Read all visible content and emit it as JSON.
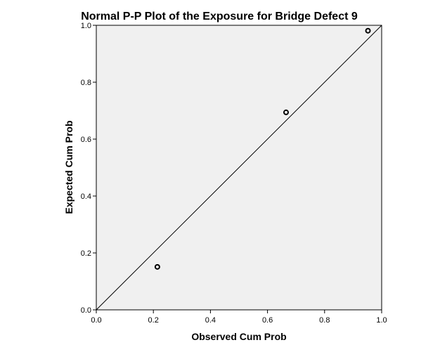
{
  "chart_data": {
    "type": "scatter",
    "title": "Normal P-P Plot of the Exposure for Bridge Defect 9",
    "xlabel": "Observed Cum Prob",
    "ylabel": "Expected Cum Prob",
    "xlim": [
      0,
      1
    ],
    "ylim": [
      0,
      1
    ],
    "x_ticks": [
      "0.0",
      "0.2",
      "0.4",
      "0.6",
      "0.8",
      "1.0"
    ],
    "y_ticks": [
      "0.0",
      "0.2",
      "0.4",
      "0.6",
      "0.8",
      "1.0"
    ],
    "grid": false,
    "reference_line": [
      [
        0,
        0
      ],
      [
        1,
        1
      ]
    ],
    "points": [
      {
        "x": 0.214,
        "y": 0.151
      },
      {
        "x": 0.665,
        "y": 0.694
      },
      {
        "x": 0.952,
        "y": 0.981
      }
    ],
    "colors": {
      "plot_background": "#f0f0f0",
      "frame": "#000000",
      "marker": "#000000"
    }
  }
}
